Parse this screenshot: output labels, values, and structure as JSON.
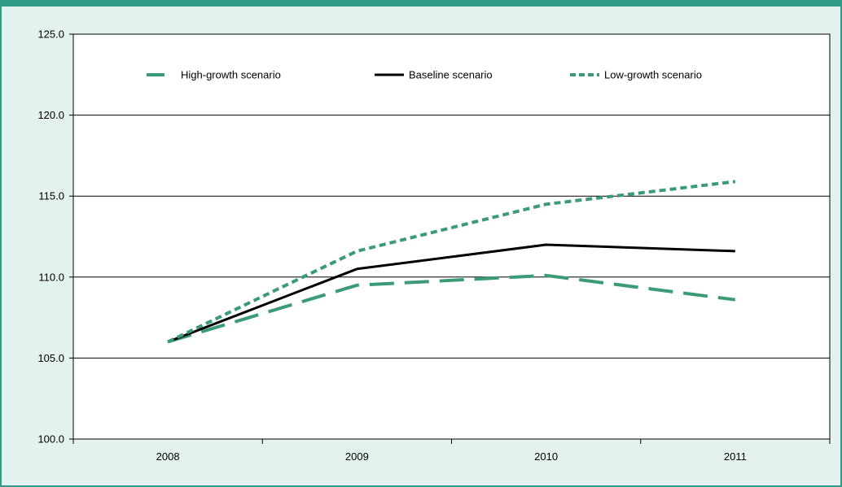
{
  "colors": {
    "background": "#e3f2ef",
    "border": "#2f9a86",
    "green_series": "#3a9b74",
    "black_series": "#000000"
  },
  "chart_data": {
    "type": "line",
    "title": "",
    "xlabel": "",
    "ylabel": "",
    "categories": [
      "2008",
      "2009",
      "2010",
      "2011"
    ],
    "ylim": [
      100.0,
      125.0
    ],
    "yticks": [
      "100.0",
      "105.0",
      "110.0",
      "115.0",
      "120.0",
      "125.0"
    ],
    "grid": true,
    "legend_position": "top",
    "series": [
      {
        "name": "High-growth scenario",
        "style": "long-dash",
        "color": "#3a9b74",
        "values": [
          106.0,
          109.5,
          110.1,
          108.6
        ]
      },
      {
        "name": "Baseline scenario",
        "style": "solid",
        "color": "#000000",
        "values": [
          106.0,
          110.5,
          112.0,
          111.6
        ]
      },
      {
        "name": "Low-growth scenario",
        "style": "short-dash",
        "color": "#3a9b74",
        "values": [
          106.0,
          111.6,
          114.5,
          115.9
        ]
      }
    ]
  }
}
